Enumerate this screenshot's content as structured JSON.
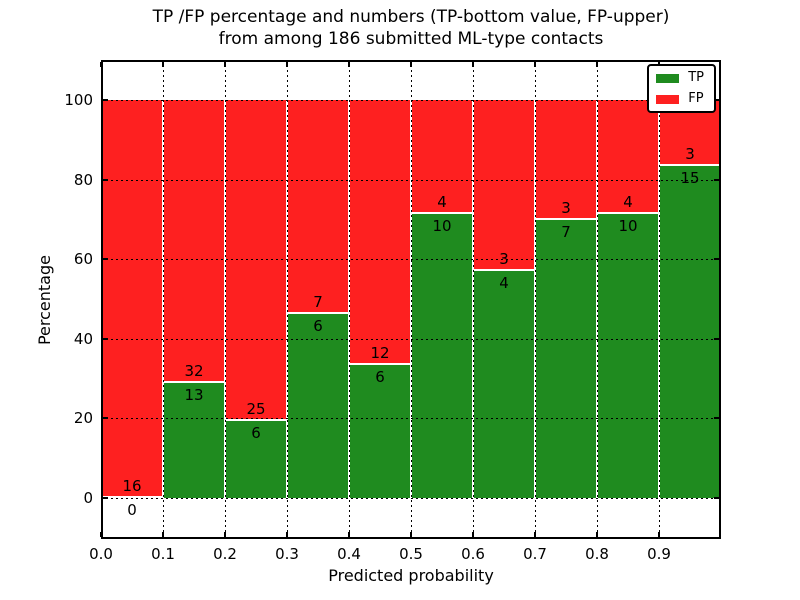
{
  "title": {
    "line1": "TP /FP percentage and numbers (TP-bottom value, FP-upper)",
    "line2": "from among 186 submitted ML-type contacts"
  },
  "axes": {
    "xlabel": "Predicted probability",
    "ylabel": "Percentage"
  },
  "legend": {
    "items": [
      {
        "label": "TP",
        "color": "#1f8b1f"
      },
      {
        "label": "FP",
        "color": "#fe2020"
      }
    ]
  },
  "chart_data": {
    "type": "bar",
    "stacked": true,
    "normalized_to_percent": true,
    "title": "TP /FP percentage and numbers (TP-bottom value, FP-upper) from among 186 submitted ML-type contacts",
    "xlabel": "Predicted probability",
    "ylabel": "Percentage",
    "total_contacts": 186,
    "bin_width": 0.1,
    "bin_starts": [
      0.0,
      0.1,
      0.2,
      0.3,
      0.4,
      0.5,
      0.6,
      0.7,
      0.8,
      0.9
    ],
    "x_tick_labels": [
      "0.0",
      "0.1",
      "0.2",
      "0.3",
      "0.4",
      "0.5",
      "0.6",
      "0.7",
      "0.8",
      "0.9"
    ],
    "y_ticks": [
      0,
      20,
      40,
      60,
      80,
      100
    ],
    "xlim": [
      0.0,
      1.0
    ],
    "ylim": [
      -10.3,
      110.1
    ],
    "grid": "dotted",
    "legend_position": "upper right",
    "series": [
      {
        "name": "TP",
        "color": "#1f8b1f",
        "counts": [
          0,
          13,
          6,
          6,
          6,
          10,
          4,
          7,
          10,
          15
        ],
        "percent": [
          0.0,
          28.9,
          19.4,
          46.2,
          33.3,
          71.4,
          57.1,
          70.0,
          71.4,
          83.3
        ]
      },
      {
        "name": "FP",
        "color": "#fe2020",
        "counts": [
          16,
          32,
          25,
          7,
          12,
          4,
          3,
          3,
          4,
          3
        ],
        "percent": [
          100.0,
          71.1,
          80.6,
          53.8,
          66.7,
          28.6,
          42.9,
          30.0,
          28.6,
          16.7
        ]
      }
    ]
  }
}
